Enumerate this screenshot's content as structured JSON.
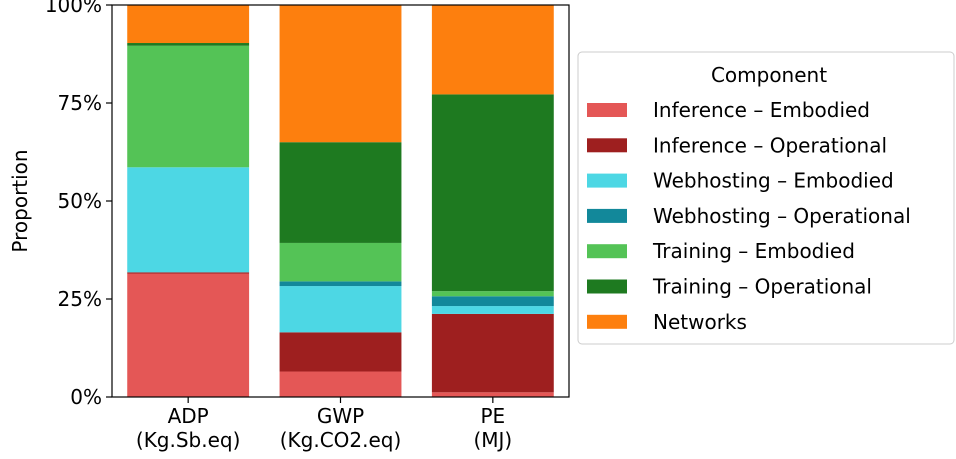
{
  "chart_data": {
    "type": "bar",
    "stacked": true,
    "categories": [
      "ADP\n(Kg.Sb.eq)",
      "GWP\n(Kg.CO2.eq)",
      "PE\n(MJ)"
    ],
    "ylabel": "Proportion",
    "xlabel": "",
    "title": "",
    "ylim": [
      0,
      1
    ],
    "yticks": [
      {
        "value": 0,
        "label": "0%"
      },
      {
        "value": 0.25,
        "label": "25%"
      },
      {
        "value": 0.5,
        "label": "50%"
      },
      {
        "value": 0.75,
        "label": "75%"
      },
      {
        "value": 1,
        "label": "100%"
      }
    ],
    "grid": false,
    "legend": {
      "title": "Component",
      "placement": "right"
    },
    "series": [
      {
        "name": "Inference – Embodied",
        "color": "#e45756",
        "values": [
          0.315,
          0.065,
          0.012
        ]
      },
      {
        "name": "Inference – Operational",
        "color": "#9e1f1f",
        "values": [
          0.003,
          0.1,
          0.2
        ]
      },
      {
        "name": "Webhosting – Embodied",
        "color": "#4dd7e4",
        "values": [
          0.268,
          0.118,
          0.02
        ]
      },
      {
        "name": "Webhosting – Operational",
        "color": "#12889a",
        "values": [
          0.0,
          0.012,
          0.025
        ]
      },
      {
        "name": "Training – Embodied",
        "color": "#54c356",
        "values": [
          0.31,
          0.098,
          0.013
        ]
      },
      {
        "name": "Training – Operational",
        "color": "#1e7a20",
        "values": [
          0.007,
          0.257,
          0.502
        ]
      },
      {
        "name": "Networks",
        "color": "#fd7f0e",
        "values": [
          0.097,
          0.35,
          0.228
        ]
      }
    ]
  }
}
